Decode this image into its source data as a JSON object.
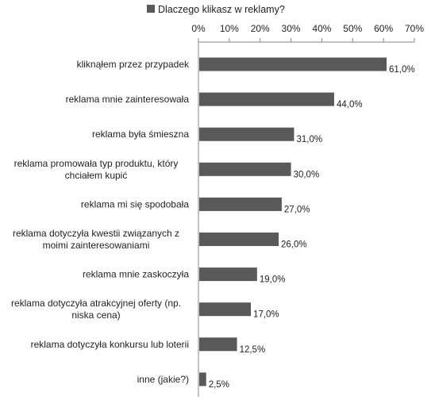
{
  "chart_data": {
    "type": "bar",
    "orientation": "horizontal",
    "legend": {
      "label": "Dlaczego klikasz w reklamy?",
      "position": "top",
      "color": "#595959"
    },
    "xlim": [
      0,
      70
    ],
    "x_ticks": [
      "0%",
      "10%",
      "20%",
      "30%",
      "40%",
      "50%",
      "60%",
      "70%"
    ],
    "x_axis_position": "top",
    "grid": false,
    "bar_color": "#595959",
    "categories": [
      [
        "kliknąłem przez przypadek"
      ],
      [
        "reklama mnie zainteresowała"
      ],
      [
        "reklama była śmieszna"
      ],
      [
        "reklama promowała typ produktu, który",
        "chciałem kupić"
      ],
      [
        "reklama mi się spodobała"
      ],
      [
        "reklama dotyczyła kwestii związanych z",
        "moimi zainteresowaniami"
      ],
      [
        "reklama mnie zaskoczyła"
      ],
      [
        "reklama dotyczyła atrakcyjnej oferty (np.",
        "niska cena)"
      ],
      [
        "reklama dotyczyła konkursu lub loterii"
      ],
      [
        "inne (jakie?)"
      ]
    ],
    "values": [
      61.0,
      44.0,
      31.0,
      30.0,
      27.0,
      26.0,
      19.0,
      17.0,
      12.5,
      2.5
    ],
    "value_labels": [
      "61,0%",
      "44,0%",
      "31,0%",
      "30,0%",
      "27,0%",
      "26,0%",
      "19,0%",
      "17,0%",
      "12,5%",
      "2,5%"
    ]
  }
}
